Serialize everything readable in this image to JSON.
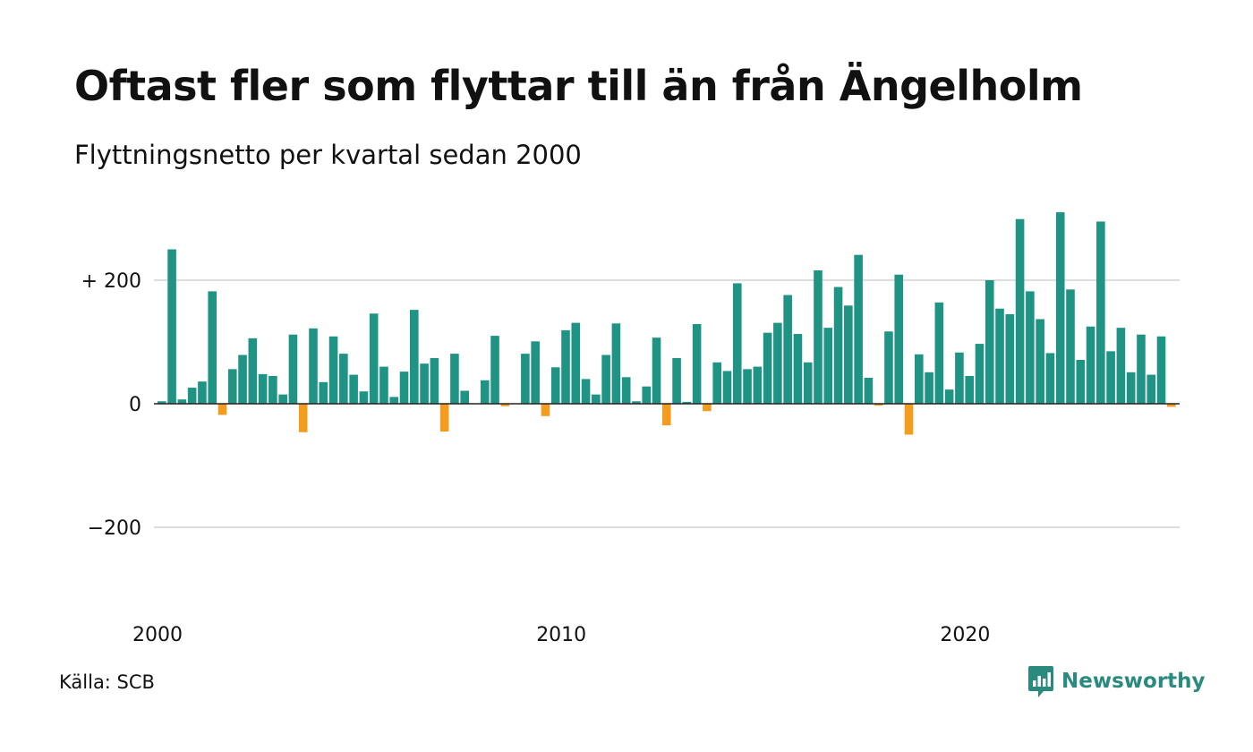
{
  "title": "Oftast fler som flyttar till än från Ängelholm",
  "subtitle": "Flyttningsnetto per kvartal sedan 2000",
  "source": "Källa: SCB",
  "logo_text": "Newsworthy",
  "colors": {
    "positive": "#1f9484",
    "negative": "#f39c1e",
    "grid": "#dddddd",
    "zero_line": "#222222",
    "logo": "#2a8a7e"
  },
  "chart_data": {
    "type": "bar",
    "title": "Oftast fler som flyttar till än från Ängelholm",
    "subtitle": "Flyttningsnetto per kvartal sedan 2000",
    "xlabel": "",
    "ylabel": "",
    "x_start": "2000 Q1",
    "x_ticks": [
      {
        "label": "2000",
        "index": 0
      },
      {
        "label": "2010",
        "index": 40
      },
      {
        "label": "2020",
        "index": 80
      }
    ],
    "y_ticks": [
      {
        "label": "+ 200",
        "value": 200
      },
      {
        "label": "0",
        "value": 0
      },
      {
        "label": "−200",
        "value": -200
      }
    ],
    "ylim": [
      -340,
      340
    ],
    "grid": true,
    "values": [
      4,
      250,
      7,
      26,
      36,
      182,
      -18,
      56,
      79,
      106,
      48,
      45,
      15,
      112,
      -46,
      122,
      35,
      109,
      81,
      47,
      20,
      146,
      60,
      11,
      52,
      152,
      65,
      74,
      -45,
      81,
      21,
      0,
      38,
      110,
      -4,
      0,
      81,
      101,
      -20,
      59,
      119,
      131,
      40,
      15,
      79,
      130,
      43,
      4,
      28,
      107,
      -35,
      74,
      3,
      129,
      -12,
      67,
      53,
      195,
      56,
      60,
      115,
      131,
      176,
      113,
      67,
      216,
      123,
      189,
      159,
      241,
      42,
      -3,
      117,
      209,
      -50,
      80,
      51,
      164,
      23,
      83,
      45,
      97,
      200,
      154,
      145,
      299,
      182,
      137,
      82,
      310,
      185,
      71,
      125,
      295,
      85,
      123,
      51,
      112,
      47,
      109,
      -5
    ]
  }
}
